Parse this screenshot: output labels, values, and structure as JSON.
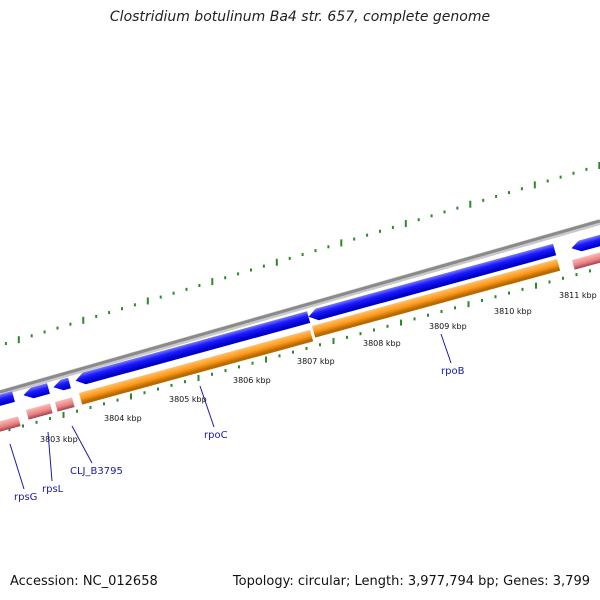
{
  "title": "Clostridium botulinum Ba4 str. 657, complete genome",
  "footer": {
    "accession": "Accession: NC_012658",
    "topology": "Topology: circular; Length: 3,977,794 bp; Genes: 3,799"
  },
  "colors": {
    "backbone": "#8a8a8a",
    "forward_cds": "#1a1aff",
    "reverse_cds": "#ff9a1a",
    "rrna_track": "#e88080",
    "gc_ticks": "#2a8a2a",
    "gene_label": "#1a1aa6"
  },
  "kbp_labels": [
    "3803 kbp",
    "3804 kbp",
    "3805 kbp",
    "3806 kbp",
    "3807 kbp",
    "3808 kbp",
    "3809 kbp",
    "3810 kbp",
    "3811 kbp"
  ],
  "gene_labels": [
    "rpsG",
    "rpsL",
    "CLJ_B3795",
    "rpoC",
    "rpoB"
  ]
}
